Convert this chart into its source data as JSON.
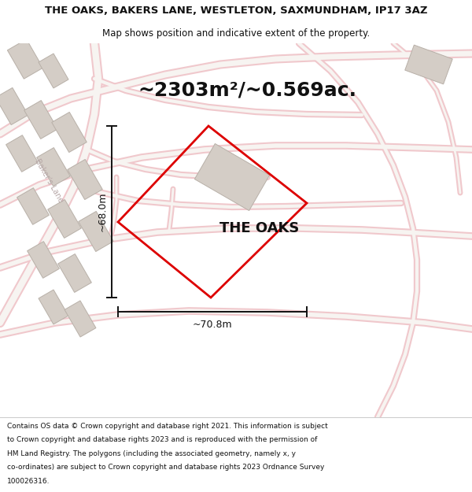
{
  "title_line1": "THE OAKS, BAKERS LANE, WESTLETON, SAXMUNDHAM, IP17 3AZ",
  "title_line2": "Map shows position and indicative extent of the property.",
  "area_text": "~2303m²/~0.569ac.",
  "property_label": "THE OAKS",
  "dim_width": "~70.8m",
  "dim_height": "~68.0m",
  "footer_lines": [
    "Contains OS data © Crown copyright and database right 2021. This information is subject",
    "to Crown copyright and database rights 2023 and is reproduced with the permission of",
    "HM Land Registry. The polygons (including the associated geometry, namely x, y",
    "co-ordinates) are subject to Crown copyright and database rights 2023 Ordnance Survey",
    "100026316."
  ],
  "bg_color": "#ffffff",
  "map_bg": "#f7f4f1",
  "road_color": "#f0c8cc",
  "road_fill": "#f8f0f1",
  "property_outline_color": "#dd0000",
  "building_color": "#d4cdc6",
  "building_outline": "#b8b0a8",
  "dim_line_color": "#111111",
  "text_color": "#111111",
  "bakers_lane_color": "#b8a8a8",
  "title_fontsize": 9.5,
  "subtitle_fontsize": 8.5,
  "area_fontsize": 18,
  "label_fontsize": 13,
  "dim_fontsize": 9,
  "footer_fontsize": 6.5,
  "bakers_lane_fontsize": 7
}
